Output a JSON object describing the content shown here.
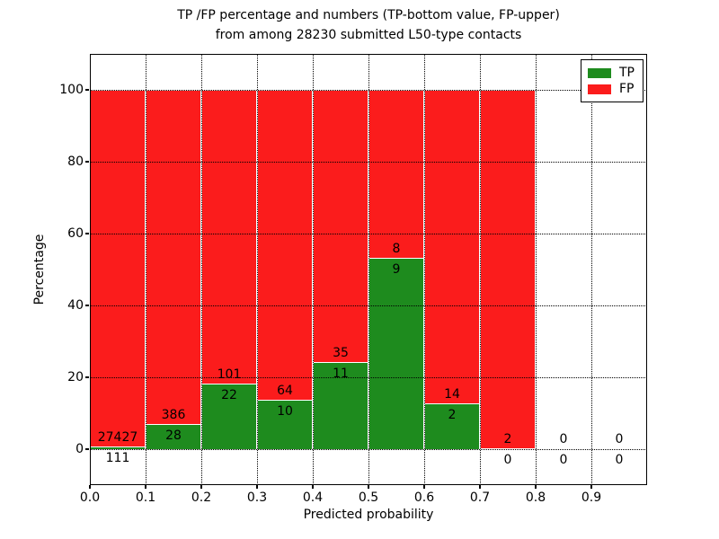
{
  "figure": {
    "title_line1": "TP /FP percentage and numbers (TP-bottom value, FP-upper)",
    "title_line2": "from among 28230 submitted L50-type contacts",
    "total_contacts": "28230"
  },
  "chart_data": {
    "type": "bar",
    "stacked": true,
    "percent_normalized": true,
    "title": "TP /FP percentage and numbers (TP-bottom value, FP-upper)\nfrom among 28230 submitted L50-type contacts",
    "xlabel": "Predicted probability",
    "ylabel": "Percentage",
    "xlim": [
      0.0,
      1.0
    ],
    "ylim": [
      -10,
      110
    ],
    "xticks": [
      "0.0",
      "0.1",
      "0.2",
      "0.3",
      "0.4",
      "0.5",
      "0.6",
      "0.7",
      "0.8",
      "0.9"
    ],
    "yticks": [
      "0",
      "20",
      "40",
      "60",
      "80",
      "100"
    ],
    "grid": true,
    "bin_width": 0.1,
    "legend": {
      "position": "upper right",
      "entries": [
        {
          "label": "TP",
          "color": "#1e8b1e"
        },
        {
          "label": "FP",
          "color": "#fb1c1c"
        }
      ]
    },
    "colors": {
      "tp": "#1e8b1e",
      "fp": "#fb1c1c",
      "grid": "#000000",
      "frame": "#000000",
      "background": "#ffffff"
    },
    "bins": [
      {
        "x_start": 0.0,
        "tp": 111,
        "fp": 27427,
        "tp_percent": 0.4,
        "fp_percent": 99.6
      },
      {
        "x_start": 0.1,
        "tp": 28,
        "fp": 386,
        "tp_percent": 6.76,
        "fp_percent": 93.24
      },
      {
        "x_start": 0.2,
        "tp": 22,
        "fp": 101,
        "tp_percent": 17.89,
        "fp_percent": 82.11
      },
      {
        "x_start": 0.3,
        "tp": 10,
        "fp": 64,
        "tp_percent": 13.51,
        "fp_percent": 86.49
      },
      {
        "x_start": 0.4,
        "tp": 11,
        "fp": 35,
        "tp_percent": 23.91,
        "fp_percent": 76.09
      },
      {
        "x_start": 0.5,
        "tp": 9,
        "fp": 8,
        "tp_percent": 52.94,
        "fp_percent": 47.06
      },
      {
        "x_start": 0.6,
        "tp": 2,
        "fp": 14,
        "tp_percent": 12.5,
        "fp_percent": 87.5
      },
      {
        "x_start": 0.7,
        "tp": 0,
        "fp": 2,
        "tp_percent": 0.0,
        "fp_percent": 100.0
      },
      {
        "x_start": 0.8,
        "tp": 0,
        "fp": 0,
        "tp_percent": 0.0,
        "fp_percent": 0.0
      },
      {
        "x_start": 0.9,
        "tp": 0,
        "fp": 0,
        "tp_percent": 0.0,
        "fp_percent": 0.0
      }
    ]
  }
}
